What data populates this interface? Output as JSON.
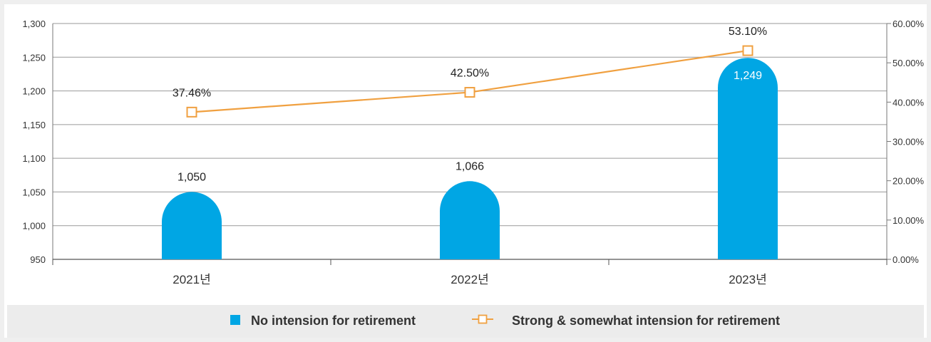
{
  "chart_data": {
    "type": "bar",
    "categories": [
      "2021년",
      "2022년",
      "2023년"
    ],
    "series": [
      {
        "name": "No intension for retirement",
        "type": "bar",
        "axis": "left",
        "values": [
          1050,
          1066,
          1249
        ],
        "labels": [
          "1,050",
          "1,066",
          "1,249"
        ],
        "color": "#00a6e4"
      },
      {
        "name": "Strong & somewhat  intension for retirement",
        "type": "line",
        "axis": "right",
        "values": [
          37.46,
          42.5,
          53.1
        ],
        "labels": [
          "37.46%",
          "42.50%",
          "53.10%"
        ],
        "color": "#f0a040"
      }
    ],
    "y_left": {
      "min": 950,
      "max": 1300,
      "ticks": [
        950,
        1000,
        1050,
        1100,
        1150,
        1200,
        1250,
        1300
      ],
      "tick_labels": [
        "950",
        "1,000",
        "1,050",
        "1,100",
        "1,150",
        "1,200",
        "1,250",
        "1,300"
      ]
    },
    "y_right": {
      "min": 0,
      "max": 60,
      "ticks": [
        0,
        10,
        20,
        30,
        40,
        50,
        60
      ],
      "tick_labels": [
        "0.00%",
        "10.00%",
        "20.00%",
        "30.00%",
        "40.00%",
        "50.00%",
        "60.00%"
      ]
    },
    "grid": true,
    "legend_position": "bottom"
  }
}
